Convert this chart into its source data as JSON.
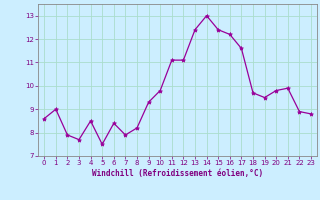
{
  "x": [
    0,
    1,
    2,
    3,
    4,
    5,
    6,
    7,
    8,
    9,
    10,
    11,
    12,
    13,
    14,
    15,
    16,
    17,
    18,
    19,
    20,
    21,
    22,
    23
  ],
  "y": [
    8.6,
    9.0,
    7.9,
    7.7,
    8.5,
    7.5,
    8.4,
    7.9,
    8.2,
    9.3,
    9.8,
    11.1,
    11.1,
    12.4,
    13.0,
    12.4,
    12.2,
    11.6,
    9.7,
    9.5,
    9.8,
    9.9,
    8.9,
    8.8
  ],
  "line_color": "#990099",
  "marker": "*",
  "marker_size": 3,
  "bg_color": "#cceeff",
  "grid_color": "#aaddcc",
  "xlabel": "Windchill (Refroidissement éolien,°C)",
  "xlabel_color": "#800080",
  "tick_color": "#800080",
  "label_color": "#800080",
  "spine_color": "#888888",
  "ylim": [
    7,
    13.5
  ],
  "yticks": [
    7,
    8,
    9,
    10,
    11,
    12,
    13
  ],
  "xlim": [
    -0.5,
    23.5
  ],
  "xticks": [
    0,
    1,
    2,
    3,
    4,
    5,
    6,
    7,
    8,
    9,
    10,
    11,
    12,
    13,
    14,
    15,
    16,
    17,
    18,
    19,
    20,
    21,
    22,
    23
  ],
  "tick_fontsize": 5,
  "xlabel_fontsize": 5.5
}
